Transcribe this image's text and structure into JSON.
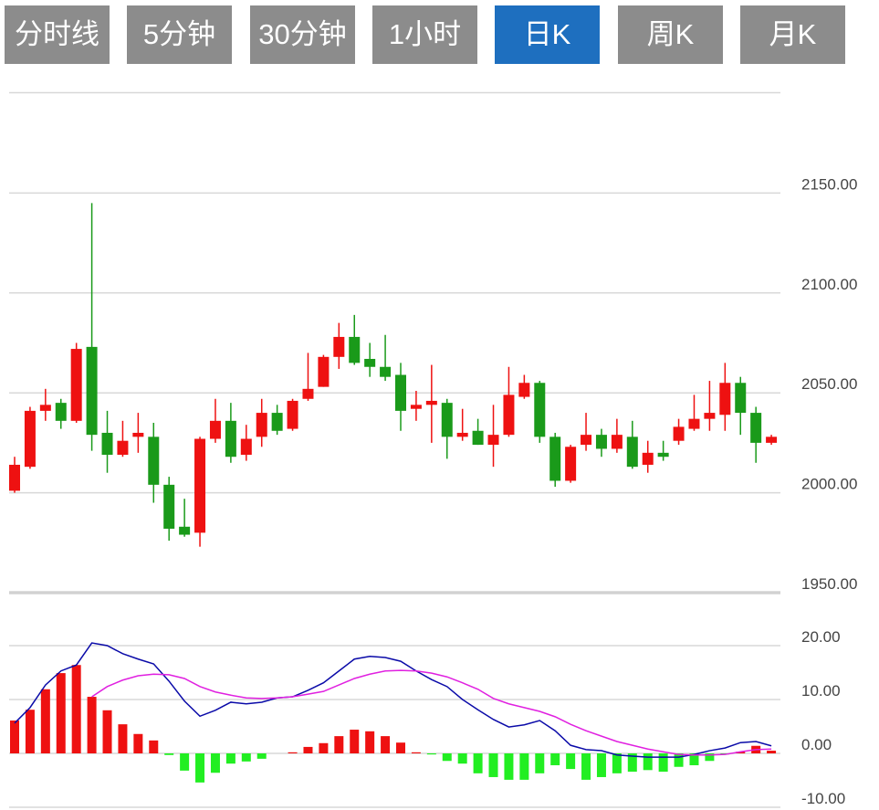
{
  "tabs": {
    "labels": [
      "分时线",
      "5分钟",
      "30分钟",
      "1小时",
      "日K",
      "周K",
      "月K"
    ],
    "active": 4
  },
  "chart_data": [
    {
      "type": "candlestick",
      "up_color": "#ee1111",
      "down_color": "#1a9a1a",
      "ylim": [
        1950,
        2200
      ],
      "yticks": [
        {
          "value": 1950,
          "label": "1950.00"
        },
        {
          "value": 2000,
          "label": "2000.00"
        },
        {
          "value": 2050,
          "label": "2050.00"
        },
        {
          "value": 2100,
          "label": "2100.00"
        },
        {
          "value": 2150,
          "label": "2150.00"
        }
      ],
      "grid": true,
      "open": [
        2001,
        2013,
        2041,
        2045,
        2036,
        2073,
        2030,
        2019,
        2028,
        2028,
        2004,
        1983,
        1980,
        2027,
        2036,
        2019,
        2028,
        2040,
        2032,
        2047,
        2053,
        2068,
        2078,
        2067,
        2063,
        2059,
        2042,
        2044,
        2045,
        2028,
        2031,
        2024,
        2029,
        2048,
        2055,
        2028,
        2006,
        2024,
        2029,
        2022,
        2028,
        2014,
        2020,
        2026,
        2032,
        2037,
        2039,
        2055,
        2040,
        2025
      ],
      "high": [
        2018,
        2043,
        2052,
        2047,
        2075,
        2145,
        2041,
        2036,
        2040,
        2035,
        2008,
        1997,
        2028,
        2047,
        2045,
        2034,
        2047,
        2044,
        2047,
        2070,
        2069,
        2085,
        2089,
        2075,
        2079,
        2065,
        2051,
        2064,
        2047,
        2042,
        2037,
        2044,
        2063,
        2059,
        2056,
        2030,
        2024,
        2040,
        2032,
        2037,
        2036,
        2026,
        2026,
        2037,
        2049,
        2056,
        2065,
        2058,
        2043,
        2029
      ],
      "low": [
        2000,
        2012,
        2036,
        2032,
        2035,
        2021,
        2010,
        2018,
        2020,
        1995,
        1976,
        1978,
        1973,
        2025,
        2015,
        2016,
        2023,
        2029,
        2031,
        2046,
        2053,
        2062,
        2064,
        2058,
        2056,
        2031,
        2036,
        2025,
        2017,
        2026,
        2024,
        2013,
        2028,
        2047,
        2025,
        2003,
        2005,
        2021,
        2018,
        2020,
        2012,
        2010,
        2016,
        2024,
        2031,
        2031,
        2031,
        2029,
        2015,
        2024
      ],
      "close": [
        2014,
        2041,
        2044,
        2036,
        2072,
        2029,
        2019,
        2026,
        2030,
        2004,
        1982,
        1979,
        2027,
        2036,
        2018,
        2027,
        2040,
        2031,
        2046,
        2052,
        2068,
        2078,
        2065,
        2063,
        2058,
        2041,
        2044,
        2046,
        2028,
        2030,
        2024,
        2029,
        2049,
        2055,
        2028,
        2006,
        2023,
        2029,
        2022,
        2029,
        2013,
        2020,
        2018,
        2033,
        2037,
        2040,
        2055,
        2040,
        2025,
        2028
      ]
    },
    {
      "type": "macd",
      "up_color": "#ee1111",
      "down_color": "#22ee22",
      "ylim": [
        -10,
        30
      ],
      "yticks": [
        {
          "value": -10,
          "label": "-10.00"
        },
        {
          "value": 0,
          "label": "0.00"
        },
        {
          "value": 10,
          "label": "10.00"
        },
        {
          "value": 20,
          "label": "20.00"
        }
      ],
      "grid": true,
      "histogram": [
        6.1,
        8.1,
        11.9,
        14.9,
        16.4,
        10.5,
        8.0,
        5.4,
        3.6,
        2.4,
        -0.3,
        -3.2,
        -5.4,
        -3.6,
        -1.9,
        -1.5,
        -1.0,
        0,
        0.2,
        1.2,
        1.9,
        3.2,
        4.4,
        4.1,
        3.2,
        2.0,
        0.2,
        -0.2,
        -1.4,
        -1.9,
        -3.7,
        -4.4,
        -4.9,
        -4.9,
        -3.7,
        -2.2,
        -2.9,
        -4.9,
        -4.4,
        -3.7,
        -3.4,
        -3.1,
        -3.4,
        -2.5,
        -2.2,
        -1.4,
        -0.2,
        0.3,
        1.4,
        0.5
      ],
      "series": [
        {
          "color": "#0a0aa8",
          "values": [
            5.6,
            8.5,
            12.7,
            15.3,
            16.4,
            20.5,
            20.0,
            18.5,
            17.5,
            16.6,
            13.4,
            9.7,
            6.9,
            8.0,
            9.5,
            9.2,
            9.5,
            10.3,
            10.5,
            11.7,
            13.1,
            15.3,
            17.5,
            18.0,
            17.8,
            17.1,
            15.3,
            13.7,
            12.4,
            10.0,
            8.1,
            6.3,
            4.9,
            5.3,
            6.1,
            4.2,
            1.5,
            0.7,
            0.5,
            -0.3,
            -0.5,
            -0.7,
            -0.7,
            -0.7,
            -0.2,
            0.5,
            1.0,
            2.0,
            2.2,
            1.4
          ]
        },
        {
          "color": "#e020e0",
          "values": [
            null,
            null,
            null,
            null,
            null,
            10.5,
            12.4,
            13.6,
            14.4,
            14.7,
            14.6,
            13.9,
            12.4,
            11.4,
            10.8,
            10.3,
            10.2,
            10.3,
            10.5,
            11.0,
            11.5,
            12.7,
            13.9,
            14.7,
            15.3,
            15.4,
            15.3,
            14.9,
            14.2,
            13.1,
            11.9,
            10.2,
            9.2,
            8.5,
            7.8,
            6.8,
            5.4,
            4.2,
            3.2,
            2.2,
            1.5,
            0.8,
            0.3,
            -0.2,
            -0.3,
            -0.3,
            -0.2,
            0.3,
            0.7,
            0.8
          ]
        }
      ]
    }
  ]
}
